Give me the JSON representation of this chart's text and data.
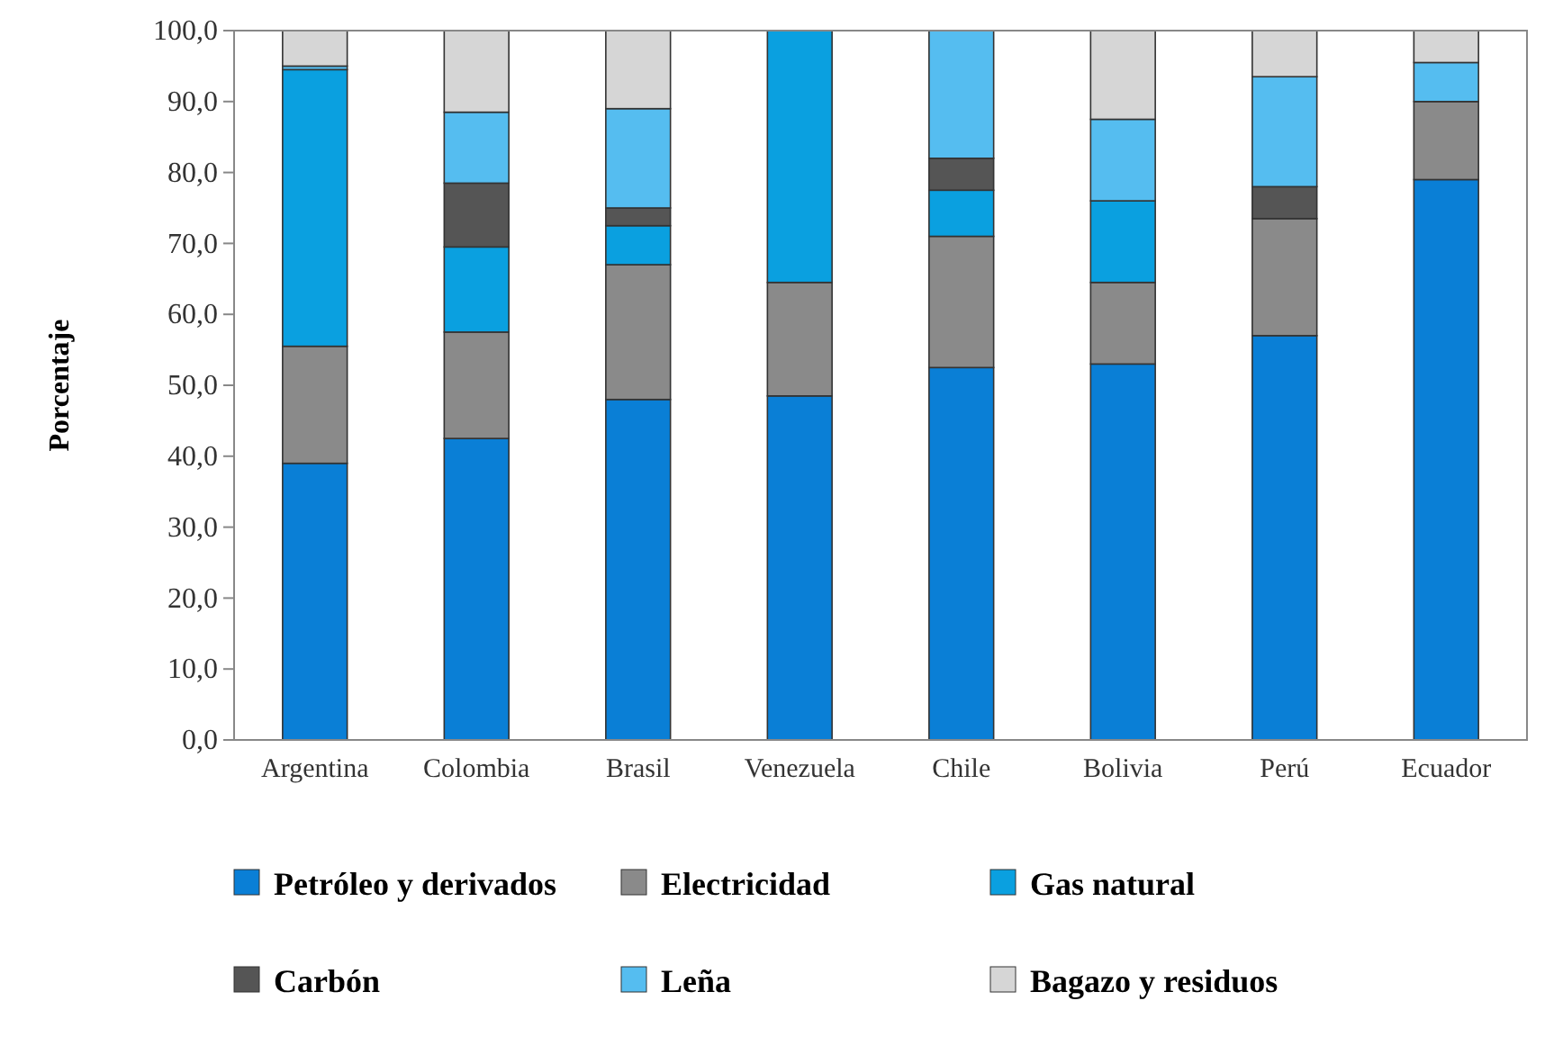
{
  "chart_data": {
    "type": "bar",
    "stacked": true,
    "ylabel": "Porcentaje",
    "legend": "bottom",
    "grid": false,
    "categories": [
      "Argentina",
      "Colombia",
      "Brasil",
      "Venezuela",
      "Chile",
      "Bolivia",
      "Perú",
      "Ecuador"
    ],
    "ylim": [
      0,
      100
    ],
    "yticks": [
      {
        "value": 0,
        "label": "0,0"
      },
      {
        "value": 10,
        "label": "10,0"
      },
      {
        "value": 20,
        "label": "20,0"
      },
      {
        "value": 30,
        "label": "30,0"
      },
      {
        "value": 40,
        "label": "40,0"
      },
      {
        "value": 50,
        "label": "50,0"
      },
      {
        "value": 60,
        "label": "60,0"
      },
      {
        "value": 70,
        "label": "70,0"
      },
      {
        "value": 80,
        "label": "80,0"
      },
      {
        "value": 90,
        "label": "90,0"
      },
      {
        "value": 100,
        "label": "100,0"
      }
    ],
    "series": [
      {
        "name": "Petróleo y derivados",
        "color": "#0a7fd6",
        "values": [
          39,
          42.5,
          48,
          48.5,
          52.5,
          53,
          57,
          79
        ]
      },
      {
        "name": "Electricidad",
        "color": "#8a8a8a",
        "values": [
          16.5,
          15,
          19,
          16,
          18.5,
          11.5,
          16.5,
          11
        ]
      },
      {
        "name": "Gas natural",
        "color": "#0aa0e0",
        "values": [
          39,
          12,
          5.5,
          35.5,
          6.5,
          11.5,
          0,
          0
        ]
      },
      {
        "name": "Carbón",
        "color": "#555555",
        "values": [
          0,
          9,
          2.5,
          0,
          4.5,
          0,
          4.5,
          0
        ]
      },
      {
        "name": "Leña",
        "color": "#55bdf0",
        "values": [
          0.5,
          10,
          14,
          0,
          18,
          11.5,
          15.5,
          5.5
        ]
      },
      {
        "name": "Bagazo y residuos",
        "color": "#d6d6d6",
        "values": [
          5,
          11.5,
          11,
          0,
          0,
          12.5,
          6.5,
          4.5
        ]
      }
    ]
  }
}
